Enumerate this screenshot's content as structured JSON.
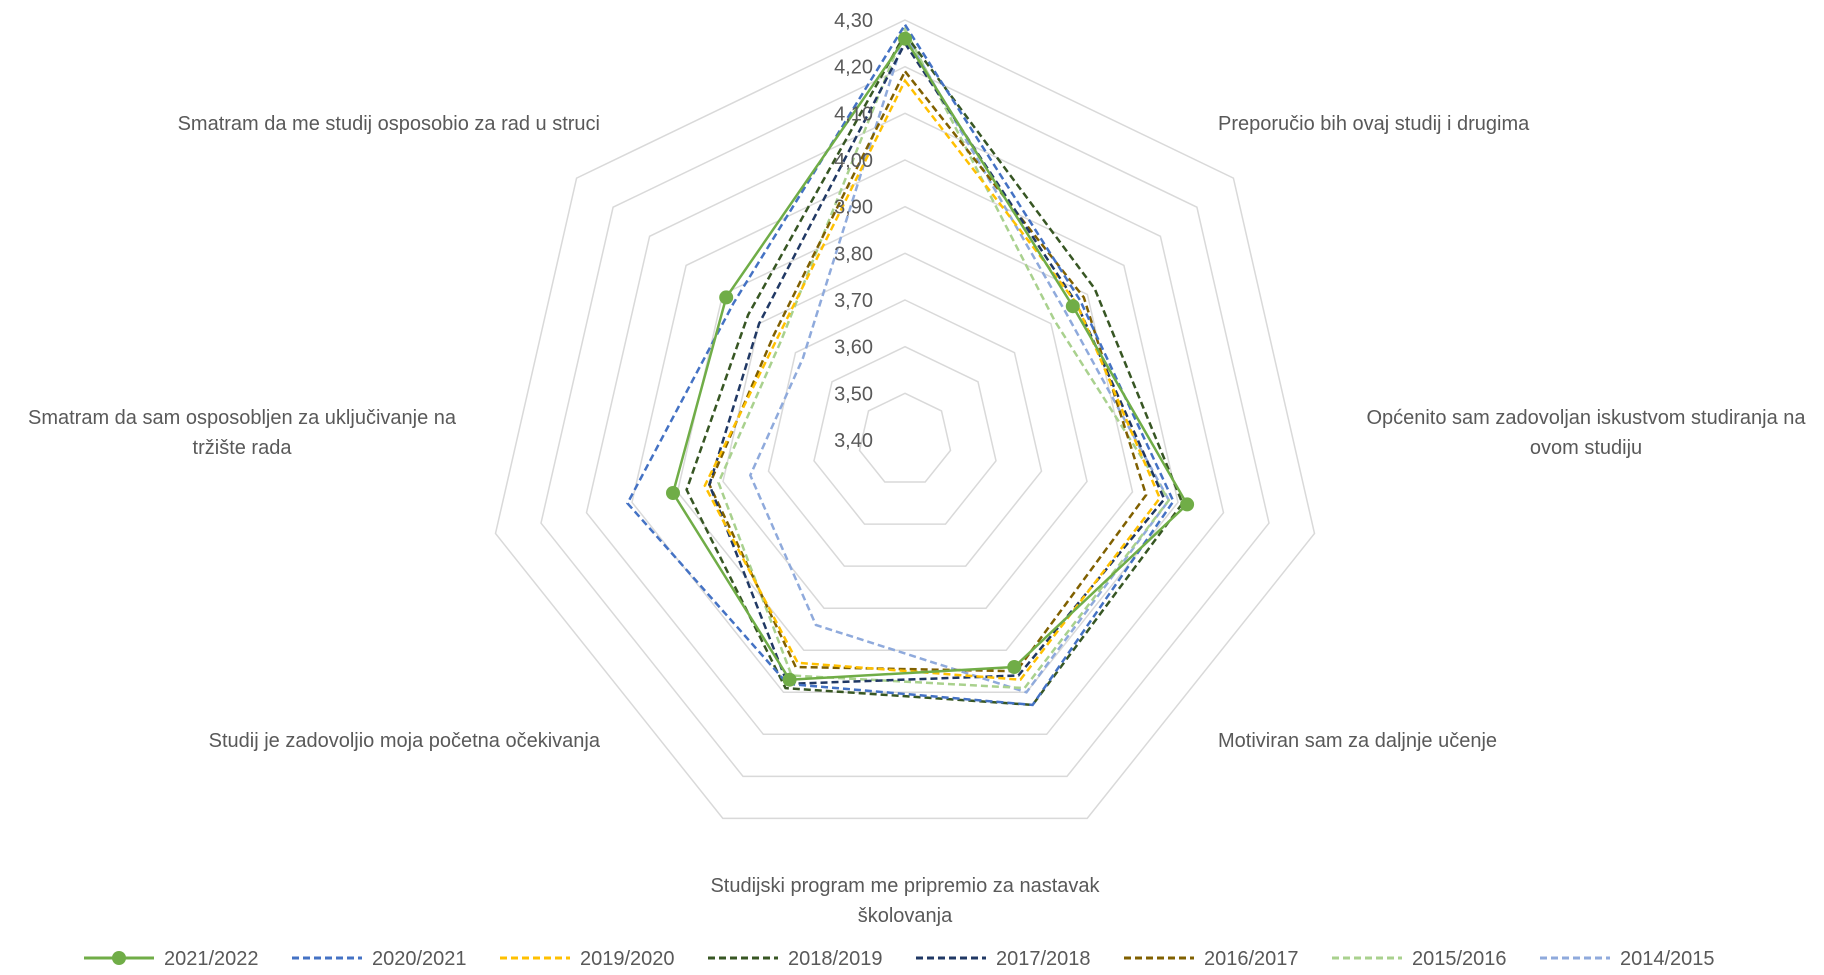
{
  "chart_data": {
    "type": "radar",
    "title": "",
    "categories": [
      "Smatram da me studij osposobio za rad u struci",
      "Preporučio bih ovaj studij i drugima",
      "Općenito sam zadovoljan iskustvom studiranja na ovom studiju",
      "Motiviran sam za daljnje učenje",
      "Studijski program me pripremio za nastavak školovanja",
      "Studij je zadovoljio moja početna očekivanja",
      "Smatram da sam osposobljen za uključivanje na tržište rada"
    ],
    "category_lines": [
      [
        "Smatram da me studij osposobio za rad u struci"
      ],
      [
        "Preporučio bih ovaj studij i drugima"
      ],
      [
        "Općenito sam zadovoljan iskustvom studiranja na",
        "ovom studiju"
      ],
      [
        "Motiviran sam za daljnje učenje"
      ],
      [
        "Studijski program me pripremio za nastavak",
        "školovanja"
      ],
      [
        "Studij je zadovoljio moja početna očekivanja"
      ],
      [
        "Smatram da sam osposobljen za uključivanje na",
        "tržište rada"
      ]
    ],
    "rlim": [
      3.4,
      4.3
    ],
    "ticks": [
      "3,40",
      "3,50",
      "3,60",
      "3,70",
      "3,80",
      "3,90",
      "4,00",
      "4,10",
      "4,20",
      "4,30"
    ],
    "legend_position": "bottom",
    "grid": true,
    "series": [
      {
        "name": "2021/2022",
        "color": "#70AD47",
        "dash": "solid",
        "markers": true,
        "values": [
          4.26,
          3.86,
          4.02,
          3.94,
          3.97,
          3.91,
          3.89
        ]
      },
      {
        "name": "2020/2021",
        "color": "#4472C4",
        "dash": "dashed",
        "markers": false,
        "values": [
          4.29,
          3.88,
          3.99,
          4.03,
          3.98,
          4.01,
          3.87
        ]
      },
      {
        "name": "2019/2020",
        "color": "#FFC000",
        "dash": "dashed",
        "markers": false,
        "values": [
          4.17,
          3.87,
          3.96,
          3.97,
          3.93,
          3.84,
          3.75
        ]
      },
      {
        "name": "2018/2019",
        "color": "#375623",
        "dash": "dashed",
        "markers": false,
        "values": [
          4.27,
          3.92,
          4.01,
          4.03,
          3.99,
          3.88,
          3.83
        ]
      },
      {
        "name": "2017/2018",
        "color": "#203864",
        "dash": "dashed",
        "markers": false,
        "values": [
          4.25,
          3.87,
          3.97,
          3.96,
          3.98,
          3.83,
          3.8
        ]
      },
      {
        "name": "2016/2017",
        "color": "#806000",
        "dash": "dashed",
        "markers": false,
        "values": [
          4.19,
          3.89,
          3.93,
          3.95,
          3.94,
          3.83,
          3.76
        ]
      },
      {
        "name": "2015/2016",
        "color": "#A9D18E",
        "dash": "dashed",
        "markers": false,
        "values": [
          4.28,
          3.81,
          3.98,
          3.99,
          3.96,
          3.81,
          3.74
        ]
      },
      {
        "name": "2014/2015",
        "color": "#8FAADC",
        "dash": "dashed",
        "markers": false,
        "values": [
          4.27,
          3.84,
          3.98,
          4.0,
          3.84,
          3.74,
          3.68
        ]
      }
    ]
  }
}
